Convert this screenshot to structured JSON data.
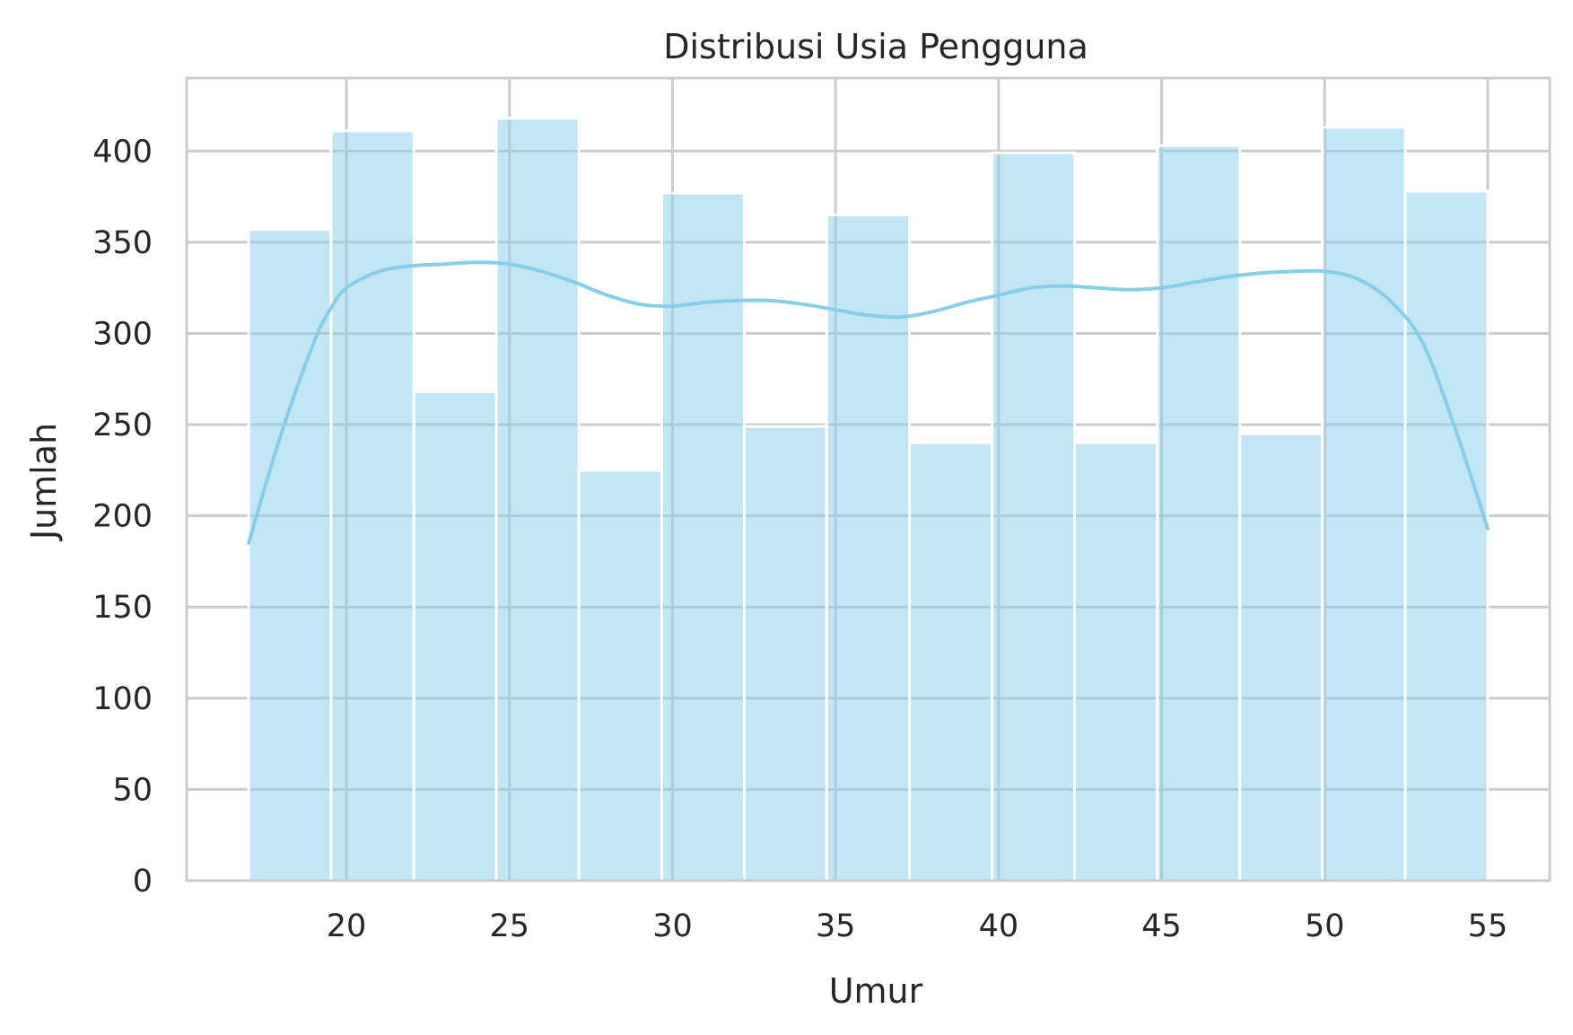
{
  "chart_data": {
    "type": "bar",
    "subtype": "histogram-with-kde",
    "title": "Distribusi Usia Pengguna",
    "xlabel": "Umur",
    "ylabel": "Jumlah",
    "xlim": [
      15.1,
      56.9
    ],
    "ylim": [
      0,
      440
    ],
    "xticks": [
      20,
      25,
      30,
      35,
      40,
      45,
      50,
      55
    ],
    "yticks": [
      0,
      50,
      100,
      150,
      200,
      250,
      300,
      350,
      400
    ],
    "grid": true,
    "legend": false,
    "bins": [
      {
        "x0": 17.0,
        "x1": 19.53,
        "value": 357
      },
      {
        "x0": 19.53,
        "x1": 22.07,
        "value": 411
      },
      {
        "x0": 22.07,
        "x1": 24.6,
        "value": 268
      },
      {
        "x0": 24.6,
        "x1": 27.13,
        "value": 418
      },
      {
        "x0": 27.13,
        "x1": 29.67,
        "value": 225
      },
      {
        "x0": 29.67,
        "x1": 32.2,
        "value": 377
      },
      {
        "x0": 32.2,
        "x1": 34.73,
        "value": 249
      },
      {
        "x0": 34.73,
        "x1": 37.27,
        "value": 365
      },
      {
        "x0": 37.27,
        "x1": 39.8,
        "value": 240
      },
      {
        "x0": 39.8,
        "x1": 42.33,
        "value": 399
      },
      {
        "x0": 42.33,
        "x1": 44.87,
        "value": 240
      },
      {
        "x0": 44.87,
        "x1": 47.4,
        "value": 403
      },
      {
        "x0": 47.4,
        "x1": 49.93,
        "value": 245
      },
      {
        "x0": 49.93,
        "x1": 52.47,
        "value": 413
      },
      {
        "x0": 52.47,
        "x1": 55.0,
        "value": 378
      }
    ],
    "kde": {
      "x": [
        17,
        18,
        19,
        19.5,
        20,
        21,
        22,
        23,
        24,
        25,
        26,
        27,
        28,
        29,
        30,
        31,
        32,
        33,
        34,
        35,
        36,
        37,
        38,
        39,
        40,
        41,
        42,
        43,
        44,
        45,
        46,
        47,
        48,
        49,
        50,
        51,
        52,
        53,
        54,
        55
      ],
      "y": [
        185,
        245,
        295,
        313,
        325,
        334,
        337,
        338,
        339,
        338,
        334,
        328,
        321,
        316,
        315,
        317,
        318,
        318,
        316,
        313,
        310,
        309,
        312,
        317,
        321,
        325,
        326,
        325,
        324,
        325,
        328,
        331,
        333,
        334,
        334,
        330,
        318,
        295,
        248,
        193
      ]
    },
    "colors": {
      "bar_fill": "#87ceeb",
      "bar_opacity": 0.5,
      "kde_line": "#87ceeb"
    }
  }
}
